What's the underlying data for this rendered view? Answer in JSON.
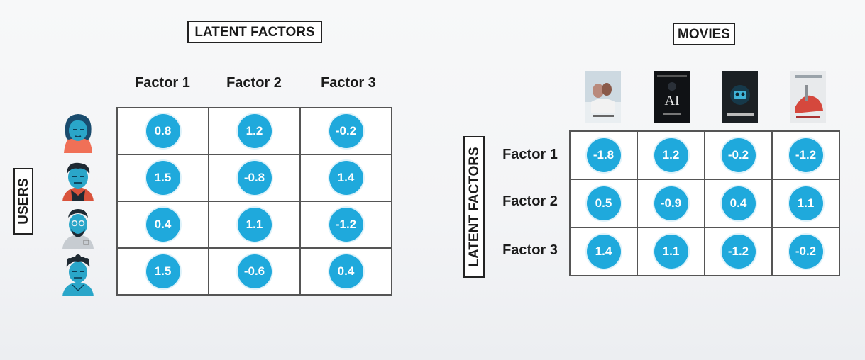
{
  "labels": {
    "latent_factors_top": "LATENT FACTORS",
    "movies_top": "MOVIES",
    "users_side": "USERS",
    "latent_factors_side": "LATENT FACTORS"
  },
  "user_matrix": {
    "columns": [
      "Factor 1",
      "Factor 2",
      "Factor 3"
    ],
    "rows": [
      [
        "0.8",
        "1.2",
        "-0.2"
      ],
      [
        "1.5",
        "-0.8",
        "1.4"
      ],
      [
        "0.4",
        "1.1",
        "-1.2"
      ],
      [
        "1.5",
        "-0.6",
        "0.4"
      ]
    ]
  },
  "movie_matrix": {
    "row_labels": [
      "Factor 1",
      "Factor 2",
      "Factor 3"
    ],
    "rows": [
      [
        "-1.8",
        "1.2",
        "-0.2",
        "-1.2"
      ],
      [
        "0.5",
        "-0.9",
        "0.4",
        "1.1"
      ],
      [
        "1.4",
        "1.1",
        "-1.2",
        "-0.2"
      ]
    ]
  },
  "poster_texts": {
    "poster_2": "AI"
  },
  "colors": {
    "accent": "#1fa9dc",
    "grid_border": "#555555",
    "text": "#1b1b1b"
  }
}
